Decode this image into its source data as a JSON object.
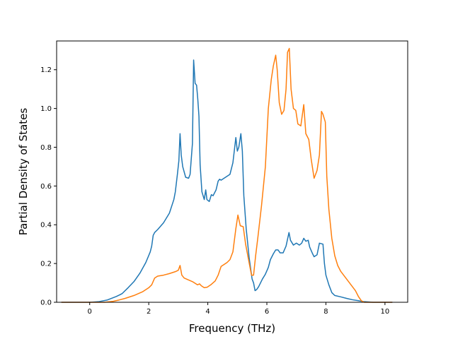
{
  "chart_data": {
    "type": "line",
    "title": "",
    "xlabel": "Frequency (THz)",
    "ylabel": "Partial Density of States",
    "xlim": [
      -1.12,
      10.77
    ],
    "ylim": [
      0,
      1.3484
    ],
    "xticks": [
      0,
      2,
      4,
      6,
      8,
      10
    ],
    "xtick_labels": [
      "0",
      "2",
      "4",
      "6",
      "8",
      "10"
    ],
    "yticks": [
      0.0,
      0.2,
      0.4,
      0.6,
      0.8,
      1.0,
      1.2
    ],
    "ytick_labels": [
      "0.0",
      "0.2",
      "0.4",
      "0.6",
      "0.8",
      "1.0",
      "1.2"
    ],
    "grid": false,
    "series": [
      {
        "color": "#1f77b4",
        "points": [
          [
            -0.96,
            0.0
          ],
          [
            0.0,
            0.0
          ],
          [
            0.3,
            0.003
          ],
          [
            0.6,
            0.012
          ],
          [
            0.9,
            0.03
          ],
          [
            1.0,
            0.037
          ],
          [
            1.1,
            0.045
          ],
          [
            1.3,
            0.075
          ],
          [
            1.5,
            0.107
          ],
          [
            1.7,
            0.15
          ],
          [
            1.9,
            0.205
          ],
          [
            2.05,
            0.26
          ],
          [
            2.1,
            0.29
          ],
          [
            2.15,
            0.345
          ],
          [
            2.2,
            0.36
          ],
          [
            2.3,
            0.375
          ],
          [
            2.5,
            0.41
          ],
          [
            2.7,
            0.46
          ],
          [
            2.85,
            0.53
          ],
          [
            2.9,
            0.57
          ],
          [
            2.97,
            0.66
          ],
          [
            3.02,
            0.73
          ],
          [
            3.06,
            0.87
          ],
          [
            3.1,
            0.76
          ],
          [
            3.15,
            0.7
          ],
          [
            3.25,
            0.645
          ],
          [
            3.35,
            0.64
          ],
          [
            3.4,
            0.66
          ],
          [
            3.43,
            0.72
          ],
          [
            3.48,
            0.82
          ],
          [
            3.52,
            1.25
          ],
          [
            3.57,
            1.13
          ],
          [
            3.62,
            1.12
          ],
          [
            3.66,
            1.05
          ],
          [
            3.7,
            0.96
          ],
          [
            3.74,
            0.71
          ],
          [
            3.8,
            0.57
          ],
          [
            3.88,
            0.53
          ],
          [
            3.93,
            0.58
          ],
          [
            3.97,
            0.53
          ],
          [
            4.05,
            0.52
          ],
          [
            4.12,
            0.555
          ],
          [
            4.18,
            0.55
          ],
          [
            4.28,
            0.58
          ],
          [
            4.35,
            0.625
          ],
          [
            4.4,
            0.635
          ],
          [
            4.45,
            0.63
          ],
          [
            4.55,
            0.64
          ],
          [
            4.65,
            0.65
          ],
          [
            4.75,
            0.66
          ],
          [
            4.85,
            0.72
          ],
          [
            4.95,
            0.85
          ],
          [
            5.0,
            0.78
          ],
          [
            5.05,
            0.8
          ],
          [
            5.12,
            0.87
          ],
          [
            5.17,
            0.78
          ],
          [
            5.22,
            0.55
          ],
          [
            5.3,
            0.38
          ],
          [
            5.4,
            0.23
          ],
          [
            5.5,
            0.12
          ],
          [
            5.55,
            0.1
          ],
          [
            5.6,
            0.06
          ],
          [
            5.65,
            0.065
          ],
          [
            5.72,
            0.08
          ],
          [
            5.85,
            0.12
          ],
          [
            5.95,
            0.145
          ],
          [
            6.05,
            0.18
          ],
          [
            6.12,
            0.22
          ],
          [
            6.22,
            0.25
          ],
          [
            6.3,
            0.27
          ],
          [
            6.38,
            0.27
          ],
          [
            6.45,
            0.255
          ],
          [
            6.55,
            0.255
          ],
          [
            6.65,
            0.29
          ],
          [
            6.75,
            0.36
          ],
          [
            6.8,
            0.32
          ],
          [
            6.9,
            0.295
          ],
          [
            7.0,
            0.305
          ],
          [
            7.1,
            0.295
          ],
          [
            7.18,
            0.305
          ],
          [
            7.25,
            0.33
          ],
          [
            7.32,
            0.315
          ],
          [
            7.4,
            0.32
          ],
          [
            7.45,
            0.285
          ],
          [
            7.55,
            0.25
          ],
          [
            7.6,
            0.235
          ],
          [
            7.7,
            0.245
          ],
          [
            7.78,
            0.305
          ],
          [
            7.9,
            0.3
          ],
          [
            7.95,
            0.2
          ],
          [
            8.0,
            0.14
          ],
          [
            8.1,
            0.09
          ],
          [
            8.2,
            0.05
          ],
          [
            8.3,
            0.035
          ],
          [
            8.5,
            0.028
          ],
          [
            8.7,
            0.02
          ],
          [
            8.9,
            0.013
          ],
          [
            9.1,
            0.008
          ],
          [
            9.3,
            0.003
          ],
          [
            9.6,
            0.0
          ],
          [
            10.25,
            0.0
          ]
        ]
      },
      {
        "color": "#ff7f0e",
        "points": [
          [
            -0.96,
            0.0
          ],
          [
            0.5,
            0.0
          ],
          [
            0.8,
            0.005
          ],
          [
            1.0,
            0.012
          ],
          [
            1.2,
            0.02
          ],
          [
            1.5,
            0.035
          ],
          [
            1.8,
            0.055
          ],
          [
            2.0,
            0.075
          ],
          [
            2.1,
            0.09
          ],
          [
            2.2,
            0.125
          ],
          [
            2.3,
            0.135
          ],
          [
            2.5,
            0.14
          ],
          [
            2.7,
            0.148
          ],
          [
            2.9,
            0.158
          ],
          [
            3.0,
            0.165
          ],
          [
            3.06,
            0.19
          ],
          [
            3.12,
            0.14
          ],
          [
            3.2,
            0.125
          ],
          [
            3.35,
            0.115
          ],
          [
            3.5,
            0.105
          ],
          [
            3.65,
            0.09
          ],
          [
            3.72,
            0.095
          ],
          [
            3.78,
            0.085
          ],
          [
            3.88,
            0.075
          ],
          [
            3.98,
            0.078
          ],
          [
            4.1,
            0.09
          ],
          [
            4.25,
            0.11
          ],
          [
            4.35,
            0.14
          ],
          [
            4.45,
            0.185
          ],
          [
            4.55,
            0.195
          ],
          [
            4.65,
            0.205
          ],
          [
            4.75,
            0.22
          ],
          [
            4.85,
            0.26
          ],
          [
            4.95,
            0.38
          ],
          [
            5.02,
            0.45
          ],
          [
            5.1,
            0.395
          ],
          [
            5.2,
            0.39
          ],
          [
            5.28,
            0.3
          ],
          [
            5.38,
            0.22
          ],
          [
            5.48,
            0.14
          ],
          [
            5.55,
            0.14
          ],
          [
            5.62,
            0.24
          ],
          [
            5.7,
            0.34
          ],
          [
            5.82,
            0.5
          ],
          [
            5.95,
            0.7
          ],
          [
            6.05,
            1.0
          ],
          [
            6.15,
            1.15
          ],
          [
            6.22,
            1.22
          ],
          [
            6.3,
            1.275
          ],
          [
            6.35,
            1.2
          ],
          [
            6.42,
            1.03
          ],
          [
            6.5,
            0.97
          ],
          [
            6.58,
            0.99
          ],
          [
            6.65,
            1.1
          ],
          [
            6.7,
            1.29
          ],
          [
            6.76,
            1.31
          ],
          [
            6.82,
            1.1
          ],
          [
            6.9,
            1.0
          ],
          [
            6.98,
            0.99
          ],
          [
            7.05,
            0.92
          ],
          [
            7.15,
            0.91
          ],
          [
            7.25,
            1.02
          ],
          [
            7.32,
            0.87
          ],
          [
            7.42,
            0.84
          ],
          [
            7.5,
            0.74
          ],
          [
            7.6,
            0.64
          ],
          [
            7.7,
            0.68
          ],
          [
            7.78,
            0.76
          ],
          [
            7.85,
            0.985
          ],
          [
            7.9,
            0.97
          ],
          [
            7.98,
            0.93
          ],
          [
            8.03,
            0.65
          ],
          [
            8.1,
            0.48
          ],
          [
            8.2,
            0.33
          ],
          [
            8.3,
            0.24
          ],
          [
            8.4,
            0.19
          ],
          [
            8.5,
            0.16
          ],
          [
            8.6,
            0.14
          ],
          [
            8.7,
            0.12
          ],
          [
            8.8,
            0.1
          ],
          [
            8.9,
            0.08
          ],
          [
            9.0,
            0.06
          ],
          [
            9.1,
            0.03
          ],
          [
            9.2,
            0.008
          ],
          [
            9.3,
            0.0
          ],
          [
            10.25,
            0.0
          ]
        ]
      }
    ]
  }
}
